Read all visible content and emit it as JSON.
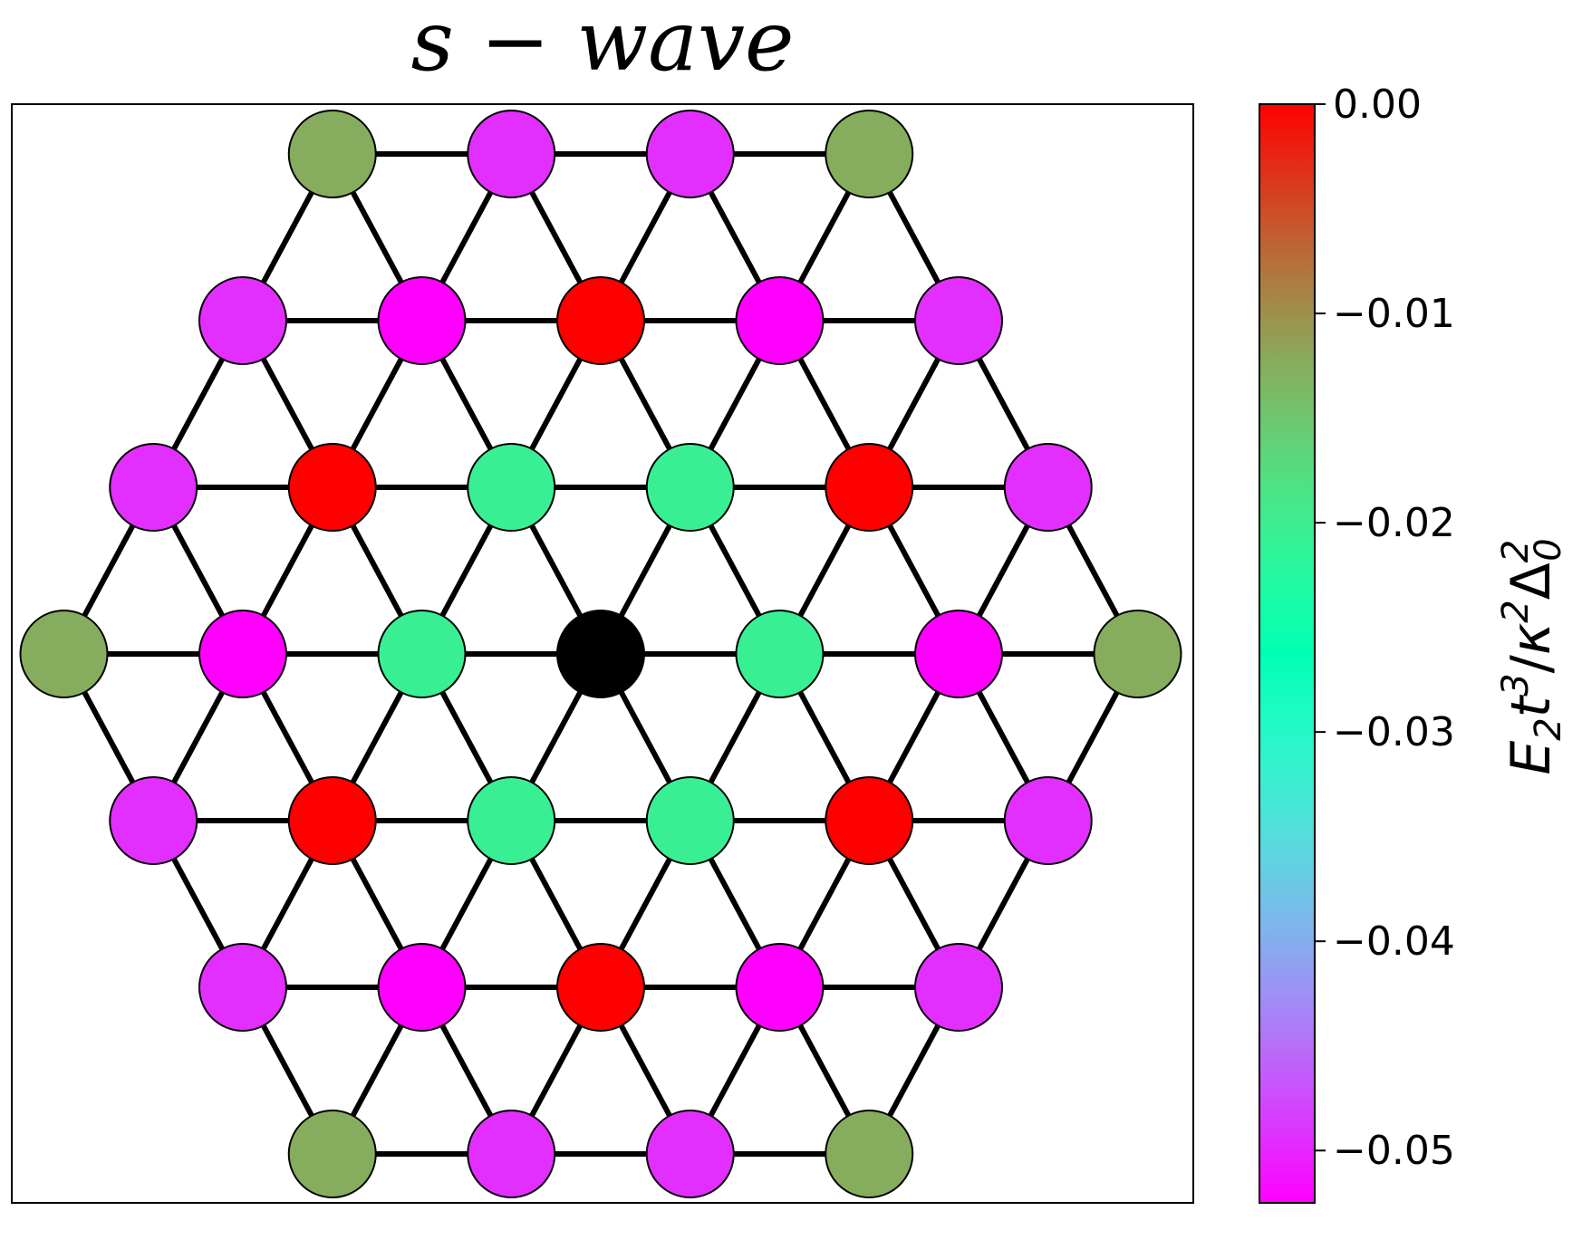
{
  "title": "s − wave",
  "colorbar": {
    "label": "E₂t³/κ²Δ₀²",
    "label_parts": {
      "E": "E",
      "sub2": "2",
      "t": "t",
      "sup3": "3",
      "slash": "/",
      "kappa": "κ",
      "sup2a": "2",
      "delta": "Δ",
      "sup2b": "2",
      "sub0": "0"
    },
    "range": [
      -0.0525,
      0.0
    ],
    "ticks": [
      {
        "value": 0.0,
        "label": "0.00"
      },
      {
        "value": -0.01,
        "label": "−0.01"
      },
      {
        "value": -0.02,
        "label": "−0.02"
      },
      {
        "value": -0.03,
        "label": "−0.03"
      },
      {
        "value": -0.04,
        "label": "−0.04"
      },
      {
        "value": -0.05,
        "label": "−0.05"
      }
    ],
    "colormap": "rainbow_r"
  },
  "lattice": {
    "type": "triangular",
    "shape": "hexagon",
    "radius": 3,
    "center_color": "#000000",
    "site_energies": [
      {
        "ring": 0,
        "kind": "center",
        "value": null
      },
      {
        "ring": 1,
        "kind": "nearest",
        "value": -0.0205
      },
      {
        "ring": 2,
        "kind": "corner",
        "value": -0.0525
      },
      {
        "ring": 2,
        "kind": "edge",
        "value": 0.0
      },
      {
        "ring": 3,
        "kind": "corner",
        "value": -0.0125
      },
      {
        "ring": 3,
        "kind": "edge",
        "value": -0.0495
      }
    ]
  }
}
